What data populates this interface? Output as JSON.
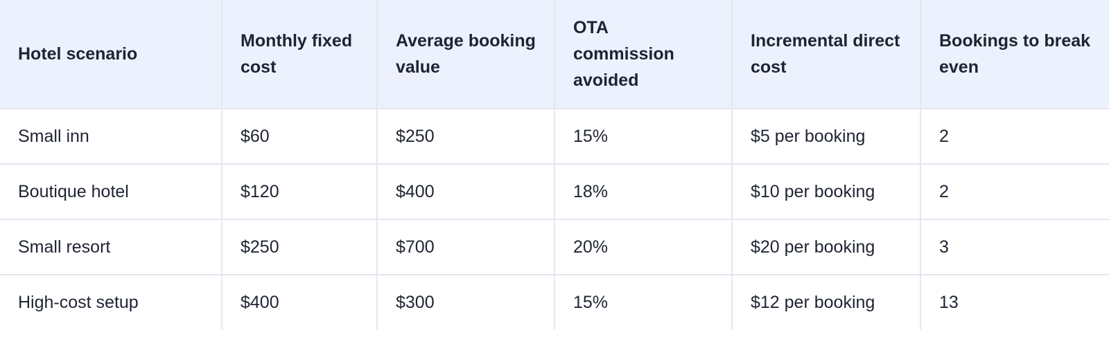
{
  "table": {
    "headers": [
      "Hotel scenario",
      "Monthly fixed cost",
      "Average booking value",
      "OTA commission avoided",
      "Incremental direct cost",
      "Bookings to break even"
    ],
    "rows": [
      [
        "Small inn",
        "$60",
        "$250",
        "15%",
        "$5 per booking",
        "2"
      ],
      [
        "Boutique hotel",
        "$120",
        "$400",
        "18%",
        "$10 per booking",
        "2"
      ],
      [
        "Small resort",
        "$250",
        "$700",
        "20%",
        "$20 per booking",
        "3"
      ],
      [
        "High-cost setup",
        "$400",
        "$300",
        "15%",
        "$12 per booking",
        "13"
      ]
    ]
  },
  "colors": {
    "header_background": "#edf1fd",
    "border": "#e3e7f0",
    "text": "#1f2433"
  }
}
